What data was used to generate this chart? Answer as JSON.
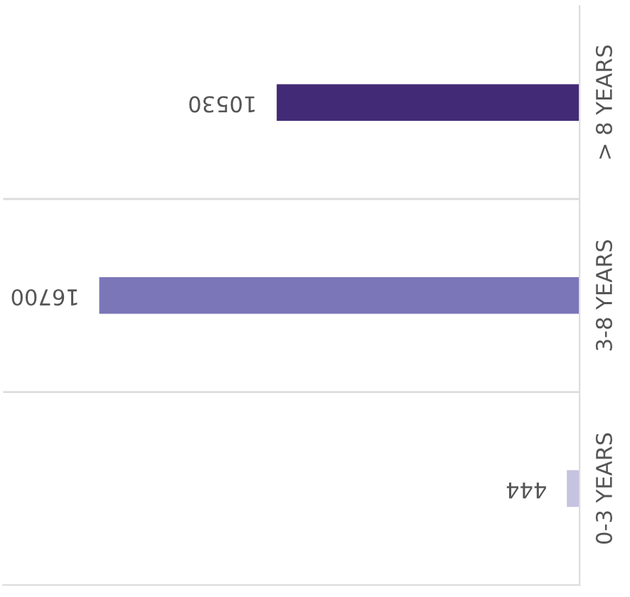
{
  "chart_data": {
    "type": "bar",
    "orientation": "horizontal",
    "categories": [
      "> 8 YEARS",
      "3-8 YEARS",
      "0-3 YEARS"
    ],
    "values": [
      10530,
      16700,
      444
    ],
    "colors": [
      "#432a76",
      "#7b76b8",
      "#c5c3e0"
    ],
    "data_labels": true,
    "grid": "y"
  }
}
